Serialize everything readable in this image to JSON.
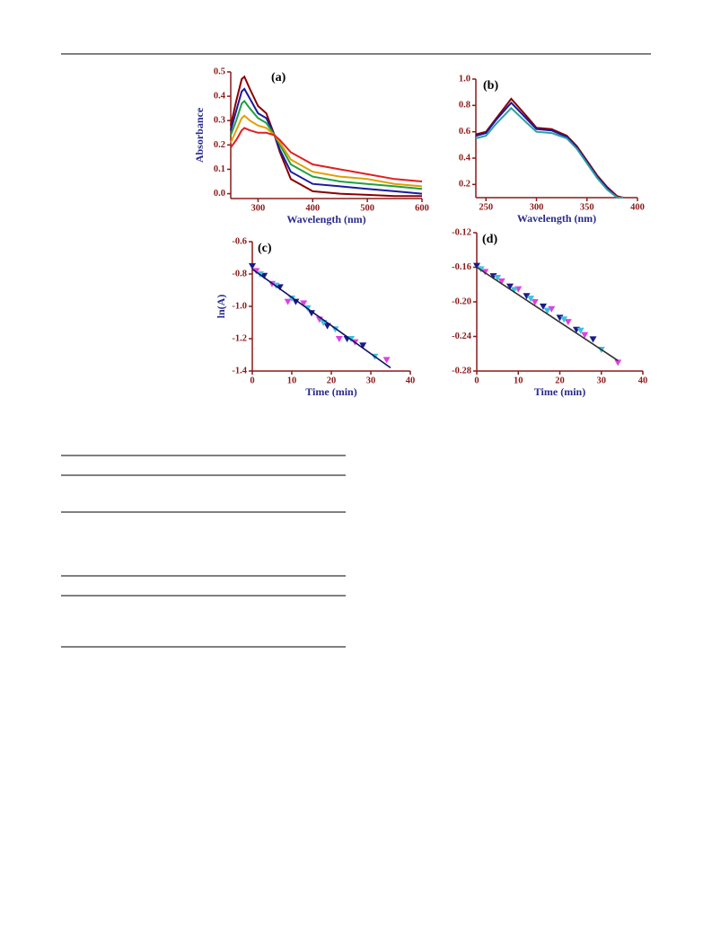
{
  "chart_data": [
    {
      "type": "line",
      "panel_label": "(a)",
      "x_label": "Wavelength (nm)",
      "y_label": "Absorbance",
      "xlim": [
        250,
        600
      ],
      "ylim": [
        -0.02,
        0.5
      ],
      "xticks": [
        300,
        400,
        500,
        600
      ],
      "yticks": [
        {
          "value": 0,
          "label": "0.0"
        },
        0.1,
        0.2,
        0.3,
        0.4,
        0.5
      ],
      "x": [
        250,
        260,
        270,
        275,
        285,
        300,
        315,
        330,
        340,
        360,
        400,
        450,
        500,
        550,
        600
      ],
      "series": [
        {
          "color": "#8b0000",
          "values": [
            0.28,
            0.38,
            0.47,
            0.48,
            0.43,
            0.36,
            0.33,
            0.24,
            0.17,
            0.06,
            0.01,
            0.0,
            -0.005,
            -0.01,
            -0.01
          ]
        },
        {
          "color": "#1a1aa0",
          "values": [
            0.26,
            0.34,
            0.42,
            0.43,
            0.39,
            0.33,
            0.31,
            0.24,
            0.18,
            0.09,
            0.04,
            0.03,
            0.02,
            0.01,
            0.0
          ]
        },
        {
          "color": "#20a040",
          "values": [
            0.24,
            0.3,
            0.37,
            0.38,
            0.35,
            0.31,
            0.29,
            0.24,
            0.2,
            0.12,
            0.07,
            0.05,
            0.04,
            0.03,
            0.02
          ]
        },
        {
          "color": "#e0a000",
          "values": [
            0.21,
            0.26,
            0.31,
            0.32,
            0.3,
            0.28,
            0.27,
            0.24,
            0.21,
            0.14,
            0.09,
            0.07,
            0.06,
            0.04,
            0.03
          ]
        },
        {
          "color": "#e02020",
          "values": [
            0.19,
            0.22,
            0.26,
            0.27,
            0.26,
            0.25,
            0.25,
            0.24,
            0.22,
            0.17,
            0.12,
            0.1,
            0.08,
            0.06,
            0.05
          ]
        }
      ]
    },
    {
      "type": "line",
      "panel_label": "(b)",
      "x_label": "Wavelength (nm)",
      "xlim": [
        240,
        400
      ],
      "ylim": [
        0.1,
        1.0
      ],
      "xticks": [
        250,
        300,
        350,
        400
      ],
      "yticks": [
        0.2,
        0.4,
        0.6,
        0.8,
        {
          "value": 1,
          "label": "1.0"
        }
      ],
      "x": [
        240,
        250,
        260,
        275,
        290,
        300,
        315,
        330,
        340,
        350,
        360,
        370,
        380,
        386
      ],
      "series": [
        {
          "color": "#8b0000",
          "values": [
            0.58,
            0.6,
            0.7,
            0.85,
            0.72,
            0.63,
            0.62,
            0.57,
            0.49,
            0.38,
            0.27,
            0.18,
            0.11,
            0.1
          ]
        },
        {
          "color": "#1a1aa0",
          "values": [
            0.57,
            0.59,
            0.69,
            0.82,
            0.7,
            0.62,
            0.61,
            0.56,
            0.48,
            0.37,
            0.26,
            0.17,
            0.1,
            0.1
          ]
        },
        {
          "color": "#30a0a0",
          "values": [
            0.55,
            0.57,
            0.66,
            0.78,
            0.67,
            0.6,
            0.59,
            0.55,
            0.47,
            0.36,
            0.25,
            0.16,
            0.1,
            0.1
          ]
        }
      ]
    },
    {
      "type": "scatter",
      "panel_label": "(c)",
      "x_label": "Time (min)",
      "y_label": "ln(A)",
      "xlim": [
        0,
        40
      ],
      "ylim": [
        -1.4,
        -0.6
      ],
      "xticks": [
        0,
        10,
        20,
        30,
        40
      ],
      "yticks": [
        -0.6,
        -0.8,
        {
          "value": -1,
          "label": "-1.0"
        },
        -1.2,
        -1.4
      ],
      "series": [
        {
          "color": "#1a1a8c",
          "x": [
            0,
            3,
            7,
            11,
            15,
            19,
            24,
            28
          ],
          "values": [
            -0.75,
            -0.81,
            -0.88,
            -0.97,
            -1.04,
            -1.12,
            -1.2,
            -1.24
          ]
        },
        {
          "color": "#e040e0",
          "x": [
            1,
            5,
            9,
            13,
            17,
            22,
            26,
            34
          ],
          "values": [
            -0.78,
            -0.86,
            -0.97,
            -0.98,
            -1.08,
            -1.2,
            -1.22,
            -1.33
          ]
        },
        {
          "color": "#40c0e0",
          "x": [
            2,
            6,
            10,
            14,
            18,
            21,
            25,
            31
          ],
          "values": [
            -0.8,
            -0.87,
            -0.95,
            -1.01,
            -1.1,
            -1.14,
            -1.2,
            -1.31
          ]
        }
      ],
      "fit": {
        "color": "#101060",
        "x": [
          0,
          35
        ],
        "values": [
          -0.77,
          -1.38
        ]
      }
    },
    {
      "type": "scatter",
      "panel_label": "(d)",
      "x_label": "Time (min)",
      "xlim": [
        0,
        40
      ],
      "ylim": [
        -0.28,
        -0.12
      ],
      "xticks": [
        0,
        10,
        20,
        30,
        40
      ],
      "yticks": [
        -0.12,
        -0.16,
        {
          "value": -0.2,
          "label": "-0.20"
        },
        -0.24,
        -0.28
      ],
      "series": [
        {
          "color": "#1a1a8c",
          "x": [
            0,
            4,
            8,
            12,
            16,
            20,
            24,
            28
          ],
          "values": [
            -0.158,
            -0.17,
            -0.182,
            -0.193,
            -0.205,
            -0.218,
            -0.232,
            -0.243
          ]
        },
        {
          "color": "#e040e0",
          "x": [
            2,
            6,
            10,
            14,
            18,
            22,
            26,
            34
          ],
          "values": [
            -0.165,
            -0.176,
            -0.185,
            -0.2,
            -0.208,
            -0.223,
            -0.238,
            -0.27
          ]
        },
        {
          "color": "#40c0e0",
          "x": [
            1,
            5,
            9,
            13,
            17,
            21,
            25,
            30
          ],
          "values": [
            -0.162,
            -0.172,
            -0.186,
            -0.196,
            -0.21,
            -0.22,
            -0.233,
            -0.255
          ]
        }
      ],
      "fit": {
        "color": "#303030",
        "x": [
          0,
          34
        ],
        "values": [
          -0.16,
          -0.268
        ]
      }
    }
  ]
}
